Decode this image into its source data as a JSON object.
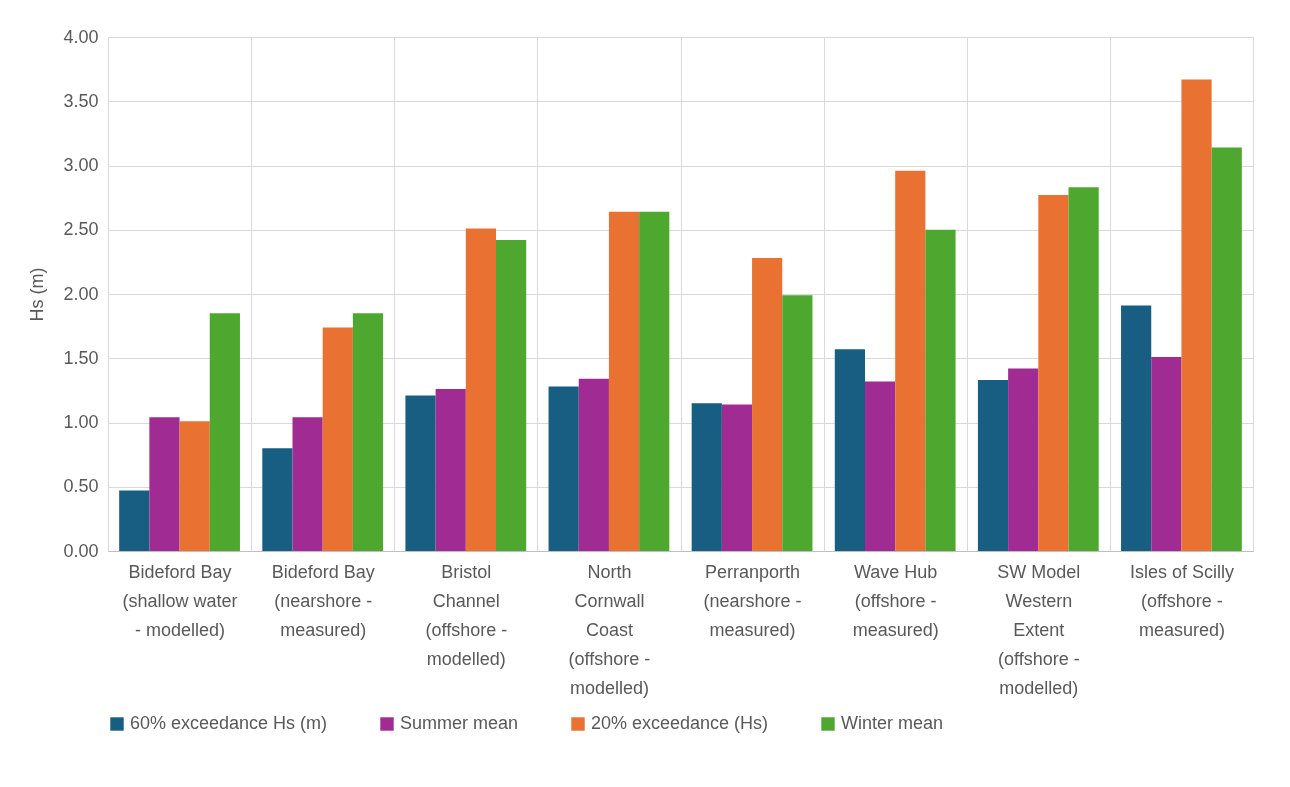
{
  "chart_data": {
    "type": "bar",
    "ylabel": "Hs (m)",
    "categories": [
      "Bideford Bay\n(shallow water\n- modelled)",
      "Bideford Bay\n(nearshore -\nmeasured)",
      "Bristol\nChannel\n(offshore -\nmodelled)",
      "North\nCornwall\nCoast\n(offshore -\nmodelled)",
      "Perranporth\n(nearshore -\nmeasured)",
      "Wave Hub\n(offshore -\nmeasured)",
      "SW Model\nWestern\nExtent\n(offshore -\nmodelled)",
      "Isles of Scilly\n(offshore -\nmeasured)"
    ],
    "series": [
      {
        "name": "60% exceedance Hs (m)",
        "color": "#175e82",
        "values": [
          0.47,
          0.8,
          1.21,
          1.28,
          1.15,
          1.57,
          1.33,
          1.91
        ]
      },
      {
        "name": "Summer mean",
        "color": "#a02b93",
        "values": [
          1.04,
          1.04,
          1.26,
          1.34,
          1.14,
          1.32,
          1.42,
          1.51
        ]
      },
      {
        "name": "20% exceedance (Hs)",
        "color": "#e97132",
        "values": [
          1.01,
          1.74,
          2.51,
          2.64,
          2.28,
          2.96,
          2.77,
          3.67
        ]
      },
      {
        "name": "Winter mean",
        "color": "#4ea72e",
        "values": [
          1.85,
          1.85,
          2.42,
          2.64,
          1.99,
          2.5,
          2.83,
          3.14
        ]
      }
    ],
    "ylim": [
      0,
      4
    ],
    "yticks": [
      {
        "value": 0,
        "label": "0.00"
      },
      {
        "value": 0.5,
        "label": "0.50"
      },
      {
        "value": 1,
        "label": "1.00"
      },
      {
        "value": 1.5,
        "label": "1.50"
      },
      {
        "value": 2,
        "label": "2.00"
      },
      {
        "value": 2.5,
        "label": "2.50"
      },
      {
        "value": 3,
        "label": "3.00"
      },
      {
        "value": 3.5,
        "label": "3.50"
      },
      {
        "value": 4,
        "label": "4.00"
      }
    ],
    "grid": true,
    "legend": "bottom"
  }
}
